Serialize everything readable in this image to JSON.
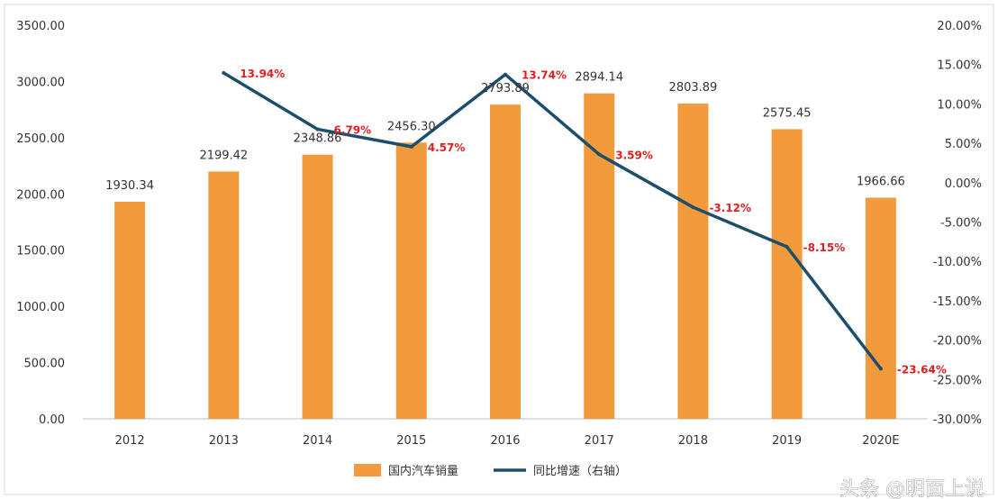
{
  "chart_data": {
    "type": "bar",
    "categories": [
      "2012",
      "2013",
      "2014",
      "2015",
      "2016",
      "2017",
      "2018",
      "2019",
      "2020E"
    ],
    "series": [
      {
        "name": "国内汽车销量",
        "type": "bar",
        "axis": "left",
        "color": "#f39b3c",
        "values": [
          1930.34,
          2199.42,
          2348.86,
          2456.3,
          2793.89,
          2894.14,
          2803.89,
          2575.45,
          1966.66
        ],
        "labels": [
          "1930.34",
          "2199.42",
          "2348.86",
          "2456.30",
          "2793.89",
          "2894.14",
          "2803.89",
          "2575.45",
          "1966.66"
        ]
      },
      {
        "name": "同比增速（右轴）",
        "type": "line",
        "axis": "right",
        "color": "#1d4e6b",
        "values": [
          null,
          13.94,
          6.79,
          4.57,
          13.74,
          3.59,
          -3.12,
          -8.15,
          -23.64
        ],
        "labels": [
          "",
          "13.94%",
          "6.79%",
          "4.57%",
          "13.74%",
          "3.59%",
          "-3.12%",
          "-8.15%",
          "-23.64%"
        ]
      }
    ],
    "left_axis": {
      "range": [
        0,
        3500
      ],
      "ticks": [
        0,
        500,
        1000,
        1500,
        2000,
        2500,
        3000,
        3500
      ],
      "tick_labels": [
        "0.00",
        "500.00",
        "1000.00",
        "1500.00",
        "2000.00",
        "2500.00",
        "3000.00",
        "3500.00"
      ]
    },
    "right_axis": {
      "range": [
        -30,
        20
      ],
      "ticks": [
        -30,
        -25,
        -20,
        -15,
        -10,
        -5,
        0,
        5,
        10,
        15,
        20
      ],
      "tick_labels": [
        "-30.00%",
        "-25.00%",
        "-20.00%",
        "-15.00%",
        "-10.00%",
        "-5.00%",
        "0.00%",
        "5.00%",
        "10.00%",
        "15.00%",
        "20.00%"
      ]
    },
    "grid": false,
    "legend": {
      "placement": "bottom",
      "items": [
        "国内汽车销量",
        "同比增速（右轴）"
      ]
    }
  },
  "watermark": "头条 @明面上说"
}
